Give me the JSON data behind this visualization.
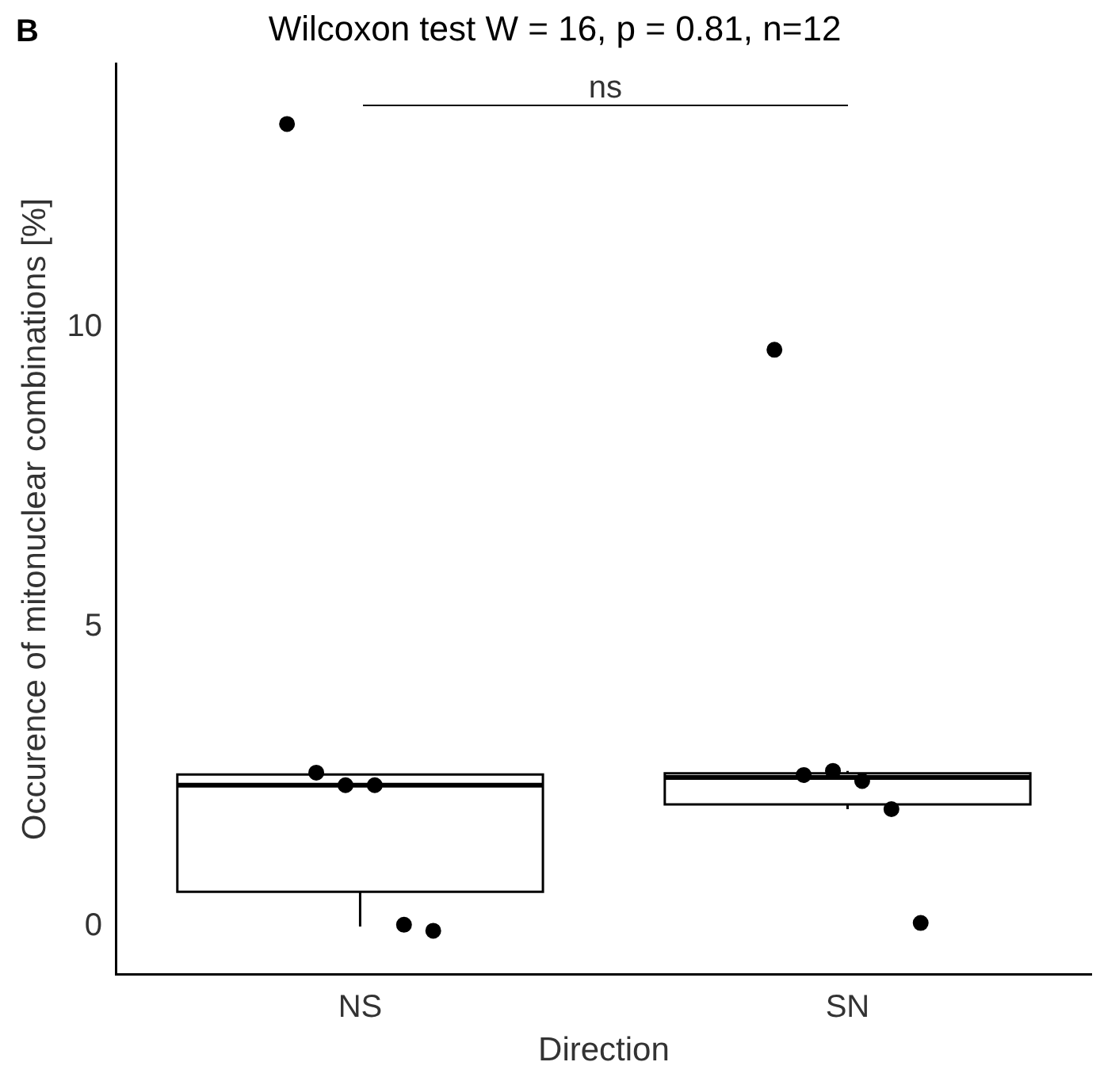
{
  "chart_data": {
    "type": "box",
    "title": "Wilcoxon test W = 16, p = 0.81, n=12",
    "xlabel": "Direction",
    "ylabel": "Occurence of mitonuclear combinations [%]",
    "categories": [
      "NS",
      "SN"
    ],
    "boxes": [
      {
        "low": 0,
        "q1": 0.58,
        "median": 2.36,
        "q3": 2.54,
        "high": 2.54
      },
      {
        "low": 1.96,
        "q1": 2.04,
        "median": 2.49,
        "q3": 2.56,
        "high": 2.6
      }
    ],
    "series": [
      {
        "type": "scatter",
        "color": "#000000",
        "x": [
          "NS",
          "NS",
          "NS",
          "NS",
          "NS",
          "NS",
          "SN",
          "SN",
          "SN",
          "SN",
          "SN",
          "SN"
        ],
        "values": [
          13.4,
          2.57,
          2.36,
          2.36,
          0.03,
          -0.07,
          9.63,
          2.53,
          2.6,
          2.43,
          1.96,
          0.06
        ]
      }
    ],
    "ylim": [
      -0.8,
      14.4
    ],
    "yticks": [
      0,
      5,
      10
    ],
    "grid": false,
    "legend": false,
    "marker": "circle",
    "annotations": [
      "B",
      "ns"
    ]
  }
}
